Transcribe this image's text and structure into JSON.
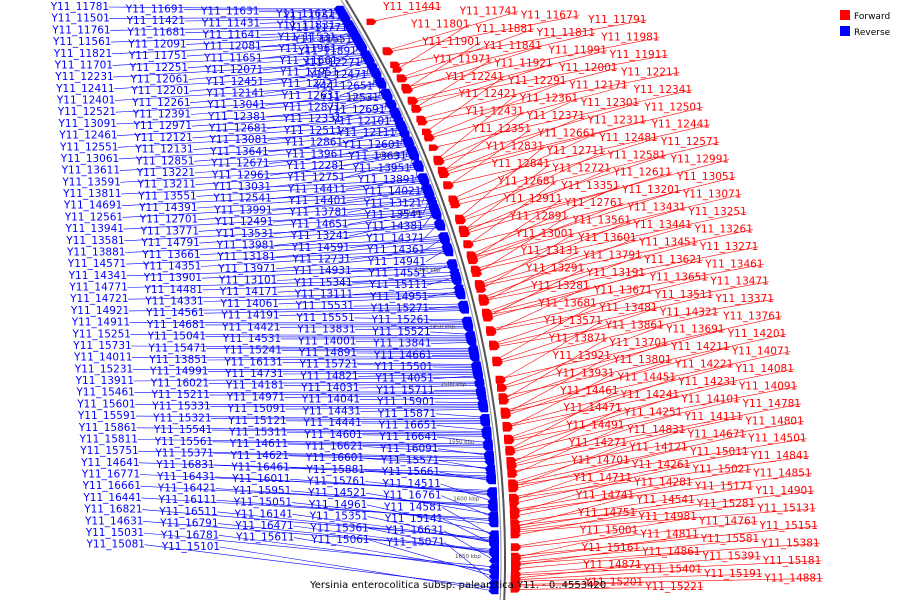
{
  "title": "Yersinia enterocolitica subsp. palearctica Y11. - 0..4553420",
  "legend": {
    "forward_label": "Forward",
    "reverse_label": "Reverse",
    "forward_color": "#ff0000",
    "reverse_color": "#0000ff"
  },
  "ticks": [
    "1200 kbp",
    "1250 kbp",
    "1300 kbp",
    "1350 kbp",
    "1400 kbp",
    "1450 kbp",
    "1500 kbp",
    "1550 kbp",
    "1600 kbp",
    "1650 kbp"
  ],
  "genes": [
    [
      "Y11_11781",
      "R"
    ],
    [
      "Y11_11691",
      "R"
    ],
    [
      "Y11_11631",
      "R"
    ],
    [
      "Y11_11621",
      "R"
    ],
    [
      "Y11_11541",
      "R"
    ],
    [
      "Y11_11501",
      "R"
    ],
    [
      "Y11_11421",
      "R"
    ],
    [
      "Y11_11431",
      "R"
    ],
    [
      "Y11_11441",
      "F"
    ],
    [
      "Y11_11831",
      "R"
    ],
    [
      "Y11_11771",
      "R"
    ],
    [
      "Y11_11761",
      "R"
    ],
    [
      "Y11_11681",
      "R"
    ],
    [
      "Y11_11641",
      "R"
    ],
    [
      "Y11_11531",
      "R"
    ],
    [
      "Y11_11551",
      "R"
    ],
    [
      "Y11_11561",
      "R"
    ],
    [
      "Y11_12091",
      "R"
    ],
    [
      "Y11_12081",
      "R"
    ],
    [
      "Y11_11961",
      "R"
    ],
    [
      "Y11_11891",
      "R"
    ],
    [
      "Y11_11821",
      "R"
    ],
    [
      "Y11_11751",
      "R"
    ],
    [
      "Y11_11651",
      "R"
    ],
    [
      "Y11_11661",
      "R"
    ],
    [
      "Y11_12271",
      "R"
    ],
    [
      "Y11_11741",
      "F"
    ],
    [
      "Y11_11671",
      "F"
    ],
    [
      "Y11_11701",
      "R"
    ],
    [
      "Y11_12251",
      "R"
    ],
    [
      "Y11_12071",
      "R"
    ],
    [
      "Y11_11951",
      "R"
    ],
    [
      "Y11_12471",
      "R"
    ],
    [
      "Y11_12231",
      "R"
    ],
    [
      "Y11_12061",
      "R"
    ],
    [
      "Y11_11791",
      "F"
    ],
    [
      "Y11_12451",
      "R"
    ],
    [
      "Y11_12221",
      "R"
    ],
    [
      "Y11_11801",
      "F"
    ],
    [
      "Y11_12651",
      "R"
    ],
    [
      "Y11_12411",
      "R"
    ],
    [
      "Y11_12201",
      "R"
    ],
    [
      "Y11_12141",
      "R"
    ],
    [
      "Y11_11881",
      "F"
    ],
    [
      "Y11_11811",
      "F"
    ],
    [
      "Y11_12631",
      "R"
    ],
    [
      "Y11_12531",
      "R"
    ],
    [
      "Y11_12401",
      "R"
    ],
    [
      "Y11_12261",
      "R"
    ],
    [
      "Y11_11981",
      "F"
    ],
    [
      "Y11_11901",
      "F"
    ],
    [
      "Y11_11841",
      "F"
    ],
    [
      "Y11_13041",
      "R"
    ],
    [
      "Y11_12871",
      "R"
    ],
    [
      "Y11_12691",
      "R"
    ],
    [
      "Y11_12521",
      "R"
    ],
    [
      "Y11_12391",
      "R"
    ],
    [
      "Y11_11991",
      "F"
    ],
    [
      "Y11_11911",
      "F"
    ],
    [
      "Y11_12381",
      "R"
    ],
    [
      "Y11_12331",
      "R"
    ],
    [
      "Y11_12101",
      "R"
    ],
    [
      "Y11_11971",
      "F"
    ],
    [
      "Y11_11921",
      "F"
    ],
    [
      "Y11_13091",
      "R"
    ],
    [
      "Y11_12971",
      "R"
    ],
    [
      "Y11_12681",
      "R"
    ],
    [
      "Y11_12511",
      "R"
    ],
    [
      "Y11_12111",
      "R"
    ],
    [
      "Y11_12001",
      "F"
    ],
    [
      "Y11_12461",
      "R"
    ],
    [
      "Y11_12211",
      "F"
    ],
    [
      "Y11_12121",
      "R"
    ],
    [
      "Y11_13081",
      "R"
    ],
    [
      "Y11_12861",
      "R"
    ],
    [
      "Y11_12601",
      "R"
    ],
    [
      "Y11_12551",
      "R"
    ],
    [
      "Y11_12241",
      "F"
    ],
    [
      "Y11_12131",
      "R"
    ],
    [
      "Y11_13641",
      "R"
    ],
    [
      "Y11_12291",
      "F"
    ],
    [
      "Y11_12171",
      "F"
    ],
    [
      "Y11_13961",
      "R"
    ],
    [
      "Y11_13631",
      "R"
    ],
    [
      "Y11_13061",
      "R"
    ],
    [
      "Y11_12851",
      "R"
    ],
    [
      "Y11_12671",
      "R"
    ],
    [
      "Y11_12341",
      "F"
    ],
    [
      "Y11_12281",
      "R"
    ],
    [
      "Y11_13951",
      "R"
    ],
    [
      "Y11_13611",
      "R"
    ],
    [
      "Y11_13221",
      "R"
    ],
    [
      "Y11_12961",
      "R"
    ],
    [
      "Y11_12751",
      "R"
    ],
    [
      "Y11_12421",
      "F"
    ],
    [
      "Y11_12361",
      "F"
    ],
    [
      "Y11_12301",
      "F"
    ],
    [
      "Y11_13891",
      "R"
    ],
    [
      "Y11_13591",
      "R"
    ],
    [
      "Y11_13211",
      "R"
    ],
    [
      "Y11_13031",
      "R"
    ],
    [
      "Y11_12501",
      "F"
    ],
    [
      "Y11_12431",
      "F"
    ],
    [
      "Y11_12371",
      "F"
    ],
    [
      "Y11_12311",
      "F"
    ],
    [
      "Y11_14411",
      "R"
    ],
    [
      "Y11_14021",
      "R"
    ],
    [
      "Y11_13811",
      "R"
    ],
    [
      "Y11_13551",
      "R"
    ],
    [
      "Y11_12541",
      "R"
    ],
    [
      "Y11_12441",
      "F"
    ],
    [
      "Y11_12351",
      "F"
    ],
    [
      "Y11_14401",
      "R"
    ],
    [
      "Y11_13121",
      "R"
    ],
    [
      "Y11_14691",
      "R"
    ],
    [
      "Y11_14391",
      "R"
    ],
    [
      "Y11_13991",
      "R"
    ],
    [
      "Y11_13781",
      "R"
    ],
    [
      "Y11_13541",
      "R"
    ],
    [
      "Y11_12661",
      "F"
    ],
    [
      "Y11_12561",
      "R"
    ],
    [
      "Y11_12481",
      "F"
    ],
    [
      "Y11_12701",
      "R"
    ],
    [
      "Y11_12571",
      "F"
    ],
    [
      "Y11_12491",
      "R"
    ],
    [
      "Y11_14651",
      "R"
    ],
    [
      "Y11_14381",
      "R"
    ],
    [
      "Y11_13941",
      "R"
    ],
    [
      "Y11_13771",
      "R"
    ],
    [
      "Y11_13531",
      "R"
    ],
    [
      "Y11_13241",
      "R"
    ],
    [
      "Y11_12831",
      "F"
    ],
    [
      "Y11_12711",
      "F"
    ],
    [
      "Y11_12581",
      "F"
    ],
    [
      "Y11_14371",
      "R"
    ],
    [
      "Y11_13581",
      "R"
    ],
    [
      "Y11_14791",
      "R"
    ],
    [
      "Y11_13981",
      "R"
    ],
    [
      "Y11_12991",
      "F"
    ],
    [
      "Y11_12841",
      "F"
    ],
    [
      "Y11_12721",
      "F"
    ],
    [
      "Y11_12611",
      "F"
    ],
    [
      "Y11_14591",
      "R"
    ],
    [
      "Y11_14361",
      "R"
    ],
    [
      "Y11_13881",
      "R"
    ],
    [
      "Y11_13661",
      "R"
    ],
    [
      "Y11_13181",
      "R"
    ],
    [
      "Y11_13051",
      "F"
    ],
    [
      "Y11_12681",
      "F"
    ],
    [
      "Y11_12731",
      "R"
    ],
    [
      "Y11_14941",
      "R"
    ],
    [
      "Y11_14571",
      "R"
    ],
    [
      "Y11_14351",
      "R"
    ],
    [
      "Y11_13971",
      "R"
    ],
    [
      "Y11_13351",
      "F"
    ],
    [
      "Y11_13201",
      "F"
    ],
    [
      "Y11_13071",
      "F"
    ],
    [
      "Y11_12911",
      "F"
    ],
    [
      "Y11_12761",
      "F"
    ],
    [
      "Y11_14931",
      "R"
    ],
    [
      "Y11_14551",
      "R"
    ],
    [
      "Y11_14341",
      "R"
    ],
    [
      "Y11_13901",
      "R"
    ],
    [
      "Y11_13431",
      "F"
    ],
    [
      "Y11_13251",
      "F"
    ],
    [
      "Y11_13101",
      "R"
    ],
    [
      "Y11_12891",
      "F"
    ],
    [
      "Y11_15341",
      "R"
    ],
    [
      "Y11_15111",
      "R"
    ],
    [
      "Y11_14771",
      "R"
    ],
    [
      "Y11_14481",
      "R"
    ],
    [
      "Y11_14171",
      "R"
    ],
    [
      "Y11_13561",
      "F"
    ],
    [
      "Y11_13441",
      "F"
    ],
    [
      "Y11_13261",
      "F"
    ],
    [
      "Y11_13111",
      "R"
    ],
    [
      "Y11_13001",
      "F"
    ],
    [
      "Y11_14951",
      "R"
    ],
    [
      "Y11_14721",
      "R"
    ],
    [
      "Y11_14331",
      "R"
    ],
    [
      "Y11_14061",
      "R"
    ],
    [
      "Y11_13601",
      "F"
    ],
    [
      "Y11_13451",
      "F"
    ],
    [
      "Y11_13271",
      "F"
    ],
    [
      "Y11_13131",
      "F"
    ],
    [
      "Y11_15531",
      "R"
    ],
    [
      "Y11_15271",
      "R"
    ],
    [
      "Y11_14921",
      "R"
    ],
    [
      "Y11_14561",
      "R"
    ],
    [
      "Y11_14191",
      "R"
    ],
    [
      "Y11_13791",
      "F"
    ],
    [
      "Y11_13621",
      "F"
    ],
    [
      "Y11_13461",
      "F"
    ],
    [
      "Y11_13291",
      "F"
    ],
    [
      "Y11_13191",
      "F"
    ],
    [
      "Y11_15551",
      "R"
    ],
    [
      "Y11_15261",
      "R"
    ],
    [
      "Y11_14911",
      "R"
    ],
    [
      "Y11_14681",
      "R"
    ],
    [
      "Y11_14421",
      "R"
    ],
    [
      "Y11_13831",
      "R"
    ],
    [
      "Y11_13651",
      "F"
    ],
    [
      "Y11_13471",
      "F"
    ],
    [
      "Y11_13281",
      "F"
    ],
    [
      "Y11_15521",
      "R"
    ],
    [
      "Y11_15251",
      "R"
    ],
    [
      "Y11_15041",
      "R"
    ],
    [
      "Y11_14531",
      "R"
    ],
    [
      "Y11_14001",
      "R"
    ],
    [
      "Y11_13841",
      "R"
    ],
    [
      "Y11_13671",
      "F"
    ],
    [
      "Y11_13511",
      "F"
    ],
    [
      "Y11_13371",
      "F"
    ],
    [
      "Y11_15731",
      "R"
    ],
    [
      "Y11_15471",
      "R"
    ],
    [
      "Y11_15241",
      "R"
    ],
    [
      "Y11_14891",
      "R"
    ],
    [
      "Y11_14661",
      "R"
    ],
    [
      "Y11_14011",
      "R"
    ],
    [
      "Y11_13851",
      "R"
    ],
    [
      "Y11_13681",
      "F"
    ],
    [
      "Y11_13481",
      "F"
    ],
    [
      "Y11_14321",
      "F"
    ],
    [
      "Y11_16131",
      "R"
    ],
    [
      "Y11_15721",
      "R"
    ],
    [
      "Y11_15501",
      "R"
    ],
    [
      "Y11_15231",
      "R"
    ],
    [
      "Y11_14991",
      "R"
    ],
    [
      "Y11_14731",
      "R"
    ],
    [
      "Y11_14821",
      "R"
    ],
    [
      "Y11_14051",
      "R"
    ],
    [
      "Y11_13911",
      "R"
    ],
    [
      "Y11_13761",
      "F"
    ],
    [
      "Y11_13571",
      "F"
    ],
    [
      "Y11_16021",
      "R"
    ],
    [
      "Y11_14181",
      "R"
    ],
    [
      "Y11_14031",
      "R"
    ],
    [
      "Y11_13861",
      "F"
    ],
    [
      "Y11_13691",
      "F"
    ],
    [
      "Y11_15711",
      "R"
    ],
    [
      "Y11_15461",
      "R"
    ],
    [
      "Y11_15211",
      "R"
    ],
    [
      "Y11_14971",
      "R"
    ],
    [
      "Y11_14201",
      "F"
    ],
    [
      "Y11_14041",
      "R"
    ],
    [
      "Y11_13871",
      "F"
    ],
    [
      "Y11_13701",
      "F"
    ],
    [
      "Y11_15901",
      "R"
    ],
    [
      "Y11_15601",
      "R"
    ],
    [
      "Y11_15331",
      "R"
    ],
    [
      "Y11_15091",
      "R"
    ],
    [
      "Y11_14431",
      "R"
    ],
    [
      "Y11_14211",
      "F"
    ],
    [
      "Y11_14071",
      "F"
    ],
    [
      "Y11_13921",
      "F"
    ],
    [
      "Y11_13801",
      "F"
    ],
    [
      "Y11_15871",
      "R"
    ],
    [
      "Y11_15591",
      "R"
    ],
    [
      "Y11_15321",
      "R"
    ],
    [
      "Y11_15121",
      "R"
    ],
    [
      "Y11_14441",
      "R"
    ],
    [
      "Y11_14221",
      "F"
    ],
    [
      "Y11_14081",
      "F"
    ],
    [
      "Y11_13931",
      "F"
    ],
    [
      "Y11_16651",
      "R"
    ],
    [
      "Y11_15861",
      "R"
    ],
    [
      "Y11_15541",
      "R"
    ],
    [
      "Y11_15311",
      "R"
    ],
    [
      "Y11_14601",
      "R"
    ],
    [
      "Y11_14451",
      "F"
    ],
    [
      "Y11_14231",
      "F"
    ],
    [
      "Y11_14091",
      "F"
    ],
    [
      "Y11_16641",
      "R"
    ],
    [
      "Y11_15811",
      "R"
    ],
    [
      "Y11_15561",
      "R"
    ],
    [
      "Y11_14611",
      "R"
    ],
    [
      "Y11_14461",
      "F"
    ],
    [
      "Y11_14241",
      "F"
    ],
    [
      "Y11_14101",
      "F"
    ],
    [
      "Y11_16621",
      "R"
    ],
    [
      "Y11_16091",
      "R"
    ],
    [
      "Y11_15751",
      "R"
    ],
    [
      "Y11_15371",
      "R"
    ],
    [
      "Y11_14781",
      "F"
    ],
    [
      "Y11_14621",
      "R"
    ],
    [
      "Y11_14471",
      "F"
    ],
    [
      "Y11_14251",
      "F"
    ],
    [
      "Y11_14111",
      "F"
    ],
    [
      "Y11_16601",
      "R"
    ],
    [
      "Y11_15571",
      "R"
    ],
    [
      "Y11_14801",
      "F"
    ],
    [
      "Y11_14641",
      "R"
    ],
    [
      "Y11_14491",
      "F"
    ],
    [
      "Y11_16831",
      "R"
    ],
    [
      "Y11_16461",
      "R"
    ],
    [
      "Y11_15881",
      "R"
    ],
    [
      "Y11_15661",
      "R"
    ],
    [
      "Y11_14831",
      "F"
    ],
    [
      "Y11_14671",
      "F"
    ],
    [
      "Y11_14501",
      "F"
    ],
    [
      "Y11_14271",
      "F"
    ],
    [
      "Y11_14121",
      "F"
    ],
    [
      "Y11_16771",
      "R"
    ],
    [
      "Y11_16431",
      "R"
    ],
    [
      "Y11_16011",
      "R"
    ],
    [
      "Y11_15761",
      "R"
    ],
    [
      "Y11_15011",
      "F"
    ],
    [
      "Y11_14841",
      "F"
    ],
    [
      "Y11_14701",
      "F"
    ],
    [
      "Y11_14511",
      "R"
    ],
    [
      "Y11_14261",
      "F"
    ],
    [
      "Y11_16661",
      "R"
    ],
    [
      "Y11_16421",
      "R"
    ],
    [
      "Y11_15951",
      "R"
    ],
    [
      "Y11_15021",
      "F"
    ],
    [
      "Y11_14851",
      "F"
    ],
    [
      "Y11_14711",
      "F"
    ],
    [
      "Y11_14521",
      "R"
    ],
    [
      "Y11_14281",
      "F"
    ],
    [
      "Y11_16761",
      "R"
    ],
    [
      "Y11_16441",
      "R"
    ],
    [
      "Y11_16111",
      "R"
    ],
    [
      "Y11_15171",
      "F"
    ],
    [
      "Y11_15051",
      "R"
    ],
    [
      "Y11_14901",
      "F"
    ],
    [
      "Y11_14741",
      "F"
    ],
    [
      "Y11_14541",
      "F"
    ],
    [
      "Y11_15281",
      "F"
    ],
    [
      "Y11_15131",
      "F"
    ],
    [
      "Y11_14961",
      "R"
    ],
    [
      "Y11_14751",
      "F"
    ],
    [
      "Y11_14581",
      "R"
    ],
    [
      "Y11_16821",
      "R"
    ],
    [
      "Y11_16511",
      "R"
    ],
    [
      "Y11_16141",
      "R"
    ],
    [
      "Y11_15351",
      "R"
    ],
    [
      "Y11_15141",
      "R"
    ],
    [
      "Y11_14981",
      "F"
    ],
    [
      "Y11_14761",
      "F"
    ],
    [
      "Y11_14631",
      "R"
    ],
    [
      "Y11_16791",
      "R"
    ],
    [
      "Y11_16471",
      "R"
    ],
    [
      "Y11_15361",
      "R"
    ],
    [
      "Y11_15151",
      "F"
    ],
    [
      "Y11_15001",
      "F"
    ],
    [
      "Y11_14811",
      "F"
    ],
    [
      "Y11_16631",
      "R"
    ],
    [
      "Y11_15581",
      "F"
    ],
    [
      "Y11_15381",
      "F"
    ],
    [
      "Y11_15161",
      "F"
    ],
    [
      "Y11_15031",
      "R"
    ],
    [
      "Y11_14861",
      "F"
    ],
    [
      "Y11_16781",
      "R"
    ],
    [
      "Y11_15611",
      "R"
    ],
    [
      "Y11_15391",
      "F"
    ],
    [
      "Y11_15181",
      "F"
    ],
    [
      "Y11_15061",
      "R"
    ],
    [
      "Y11_14871",
      "F"
    ],
    [
      "Y11_15401",
      "F"
    ],
    [
      "Y11_15191",
      "F"
    ],
    [
      "Y11_15071",
      "R"
    ],
    [
      "Y11_14881",
      "F"
    ],
    [
      "Y11_15201",
      "F"
    ],
    [
      "Y11_15081",
      "R"
    ],
    [
      "Y11_15221",
      "F"
    ],
    [
      "Y11_15101",
      "R"
    ]
  ]
}
